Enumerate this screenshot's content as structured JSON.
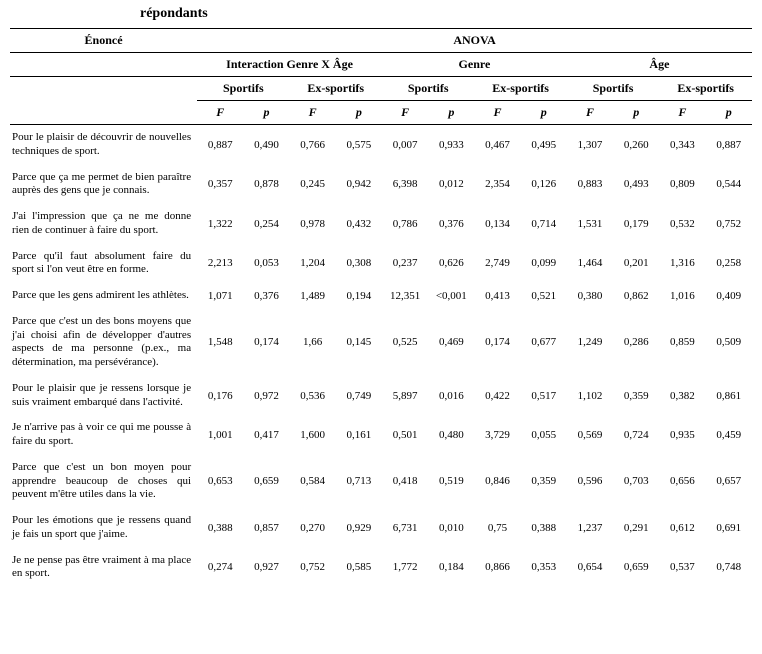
{
  "caption": "répondants",
  "table": {
    "top_headers": {
      "enonce": "Énoncé",
      "anova": "ANOVA"
    },
    "groups": [
      "Interaction Genre X Âge",
      "Genre",
      "Âge"
    ],
    "subgroups": [
      "Sportifs",
      "Ex-sportifs",
      "Sportifs",
      "Ex-sportifs",
      "Sportifs",
      "Ex-sportifs"
    ],
    "stat_labels": {
      "F": "F",
      "p": "p"
    },
    "rows": [
      {
        "label": "Pour le plaisir de découvrir de nouvelles techniques de sport.",
        "vals": [
          "0,887",
          "0,490",
          "0,766",
          "0,575",
          "0,007",
          "0,933",
          "0,467",
          "0,495",
          "1,307",
          "0,260",
          "0,343",
          "0,887"
        ]
      },
      {
        "label": "Parce que ça me permet de bien paraître auprès des gens que je connais.",
        "vals": [
          "0,357",
          "0,878",
          "0,245",
          "0,942",
          "6,398",
          "0,012",
          "2,354",
          "0,126",
          "0,883",
          "0,493",
          "0,809",
          "0,544"
        ]
      },
      {
        "label": "J'ai l'impression que ça ne me donne rien de continuer à faire du sport.",
        "vals": [
          "1,322",
          "0,254",
          "0,978",
          "0,432",
          "0,786",
          "0,376",
          "0,134",
          "0,714",
          "1,531",
          "0,179",
          "0,532",
          "0,752"
        ]
      },
      {
        "label": "Parce qu'il faut absolument faire du sport si l'on veut être en forme.",
        "vals": [
          "2,213",
          "0,053",
          "1,204",
          "0,308",
          "0,237",
          "0,626",
          "2,749",
          "0,099",
          "1,464",
          "0,201",
          "1,316",
          "0,258"
        ]
      },
      {
        "label": "Parce que les gens admirent les athlètes.",
        "vals": [
          "1,071",
          "0,376",
          "1,489",
          "0,194",
          "12,351",
          "<0,001",
          "0,413",
          "0,521",
          "0,380",
          "0,862",
          "1,016",
          "0,409"
        ]
      },
      {
        "label": "Parce que c'est un des bons moyens que j'ai choisi afin de développer d'autres aspects de ma personne (p.ex., ma détermination, ma persévérance).",
        "vals": [
          "1,548",
          "0,174",
          "1,66",
          "0,145",
          "0,525",
          "0,469",
          "0,174",
          "0,677",
          "1,249",
          "0,286",
          "0,859",
          "0,509"
        ]
      },
      {
        "label": "Pour le plaisir que je ressens lorsque je suis vraiment embarqué dans l'activité.",
        "vals": [
          "0,176",
          "0,972",
          "0,536",
          "0,749",
          "5,897",
          "0,016",
          "0,422",
          "0,517",
          "1,102",
          "0,359",
          "0,382",
          "0,861"
        ]
      },
      {
        "label": "Je n'arrive pas à voir ce qui me pousse à faire du sport.",
        "vals": [
          "1,001",
          "0,417",
          "1,600",
          "0,161",
          "0,501",
          "0,480",
          "3,729",
          "0,055",
          "0,569",
          "0,724",
          "0,935",
          "0,459"
        ]
      },
      {
        "label": "Parce que c'est un bon moyen pour apprendre beaucoup de choses qui peuvent m'être utiles dans la vie.",
        "vals": [
          "0,653",
          "0,659",
          "0,584",
          "0,713",
          "0,418",
          "0,519",
          "0,846",
          "0,359",
          "0,596",
          "0,703",
          "0,656",
          "0,657"
        ]
      },
      {
        "label": "Pour les émotions que je ressens quand je fais un sport que j'aime.",
        "vals": [
          "0,388",
          "0,857",
          "0,270",
          "0,929",
          "6,731",
          "0,010",
          "0,75",
          "0,388",
          "1,237",
          "0,291",
          "0,612",
          "0,691"
        ]
      },
      {
        "label": "Je ne pense pas être vraiment à ma place en sport.",
        "vals": [
          "0,274",
          "0,927",
          "0,752",
          "0,585",
          "1,772",
          "0,184",
          "0,866",
          "0,353",
          "0,654",
          "0,659",
          "0,537",
          "0,748"
        ]
      }
    ]
  }
}
